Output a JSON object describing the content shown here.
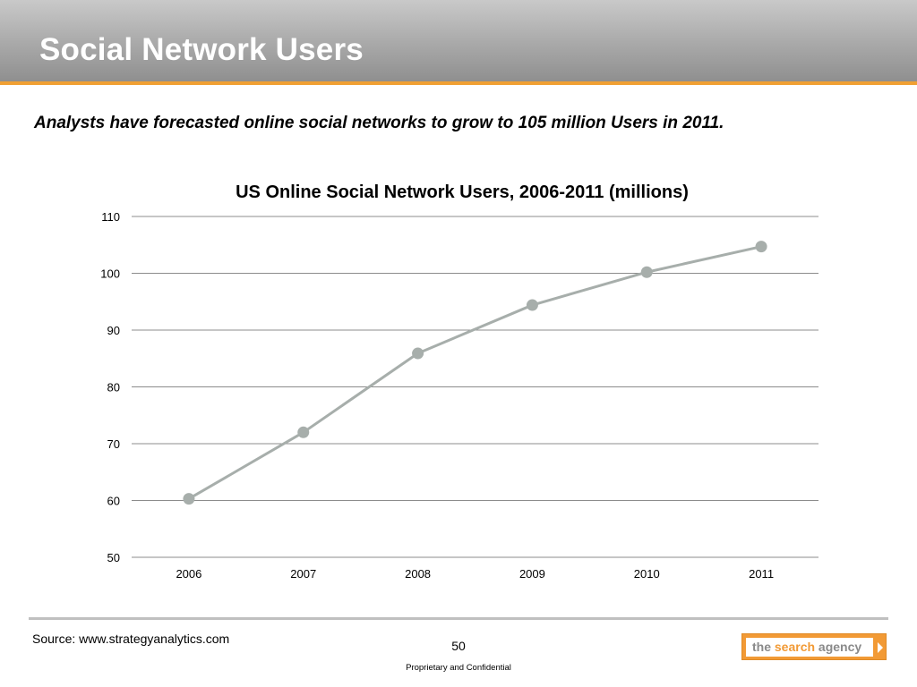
{
  "slide": {
    "title": "Social Network Users",
    "subtitle": "Analysts have forecasted online social networks to grow to 105 million Users in 2011.",
    "source": "Source: www.strategyanalytics.com",
    "page_number": "50",
    "confidential": "Proprietary and Confidential"
  },
  "logo": {
    "part1": "the ",
    "part2": "search",
    "part3": " agency",
    "color_dark": "#8a8a8a",
    "color_accent": "#f29a35"
  },
  "colors": {
    "accent_rule": "#f0a033",
    "series": "#a7aeab",
    "grid": "#8c8c8c"
  },
  "chart_data": {
    "type": "line",
    "title": "US Online Social Network Users, 2006-2011 (millions)",
    "categories": [
      "2006",
      "2007",
      "2008",
      "2009",
      "2010",
      "2011"
    ],
    "series": [
      {
        "values": [
          60.3,
          72.0,
          85.9,
          94.4,
          100.2,
          104.7
        ]
      }
    ],
    "ylim": [
      50,
      110
    ],
    "yticks": [
      50,
      60,
      70,
      80,
      90,
      100,
      110
    ],
    "grid": true,
    "legend": "none"
  }
}
